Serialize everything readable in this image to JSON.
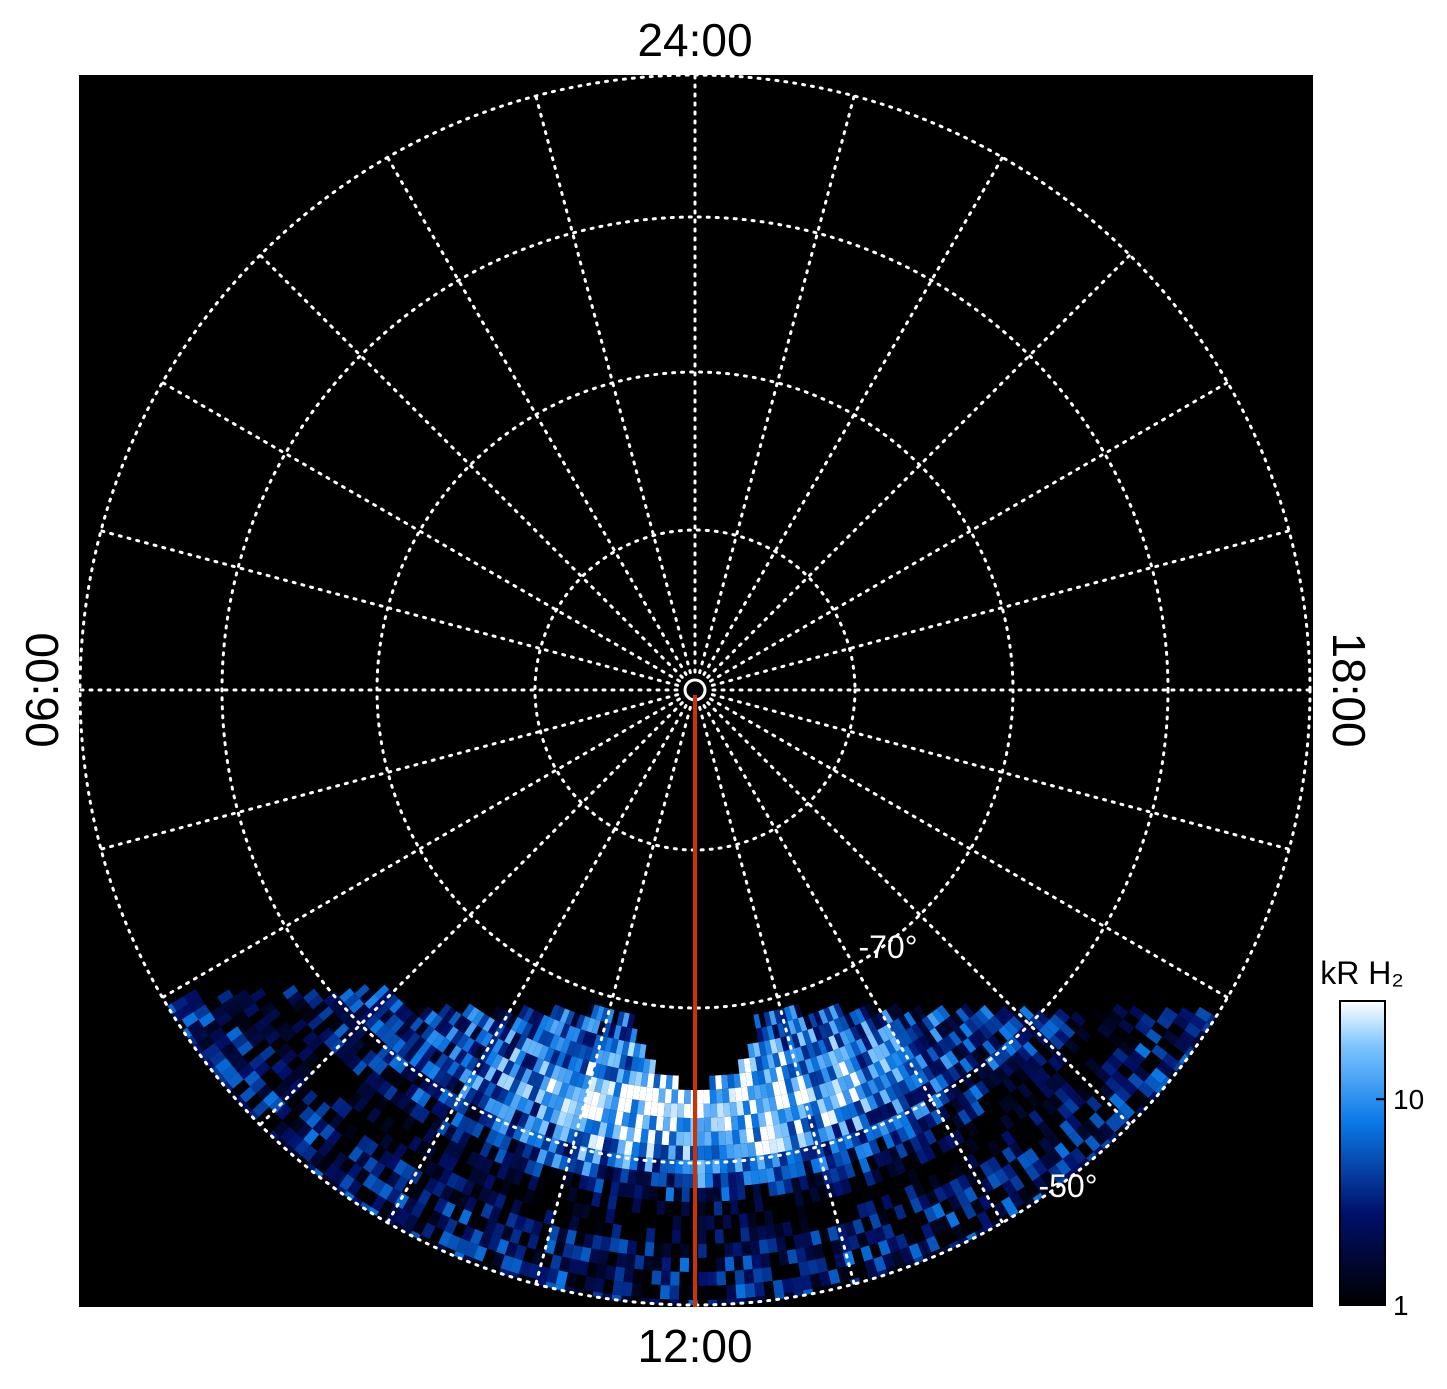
{
  "local_time_labels": {
    "top": "24:00",
    "bottom": "12:00",
    "left": "06:00",
    "right": "18:00"
  },
  "latitude_labels": [
    "-70°",
    "-50°"
  ],
  "colorbar": {
    "label": "kR H₂",
    "scale": "log",
    "lim": [
      1,
      30
    ],
    "ticks": [
      1,
      10
    ]
  }
}
